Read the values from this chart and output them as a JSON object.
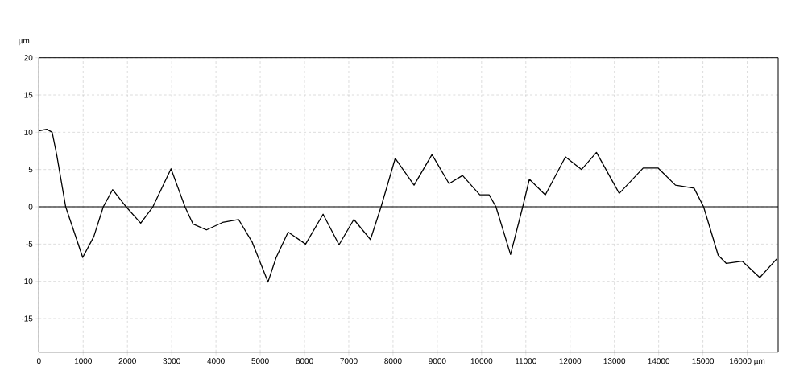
{
  "chart_data": {
    "type": "line",
    "ylabel": "µm",
    "color": "#000000",
    "line_style": "solid",
    "grid": true,
    "x": [
      0,
      180,
      300,
      405,
      605,
      990,
      1240,
      1455,
      1665,
      1970,
      2300,
      2575,
      2985,
      3300,
      3480,
      3785,
      4150,
      4510,
      4815,
      5175,
      5360,
      5630,
      6025,
      6420,
      6780,
      7115,
      7490,
      7730,
      8050,
      8475,
      8880,
      9265,
      9570,
      9960,
      10170,
      10325,
      10655,
      10930,
      11080,
      11440,
      11895,
      12260,
      12595,
      13110,
      13650,
      13985,
      14380,
      14800,
      15015,
      15345,
      15530,
      15890,
      16285,
      16667
    ],
    "values": [
      10.2,
      10.4,
      10,
      6.9,
      0,
      -6.8,
      -4,
      0,
      2.3,
      0,
      -2.2,
      0,
      5.1,
      0,
      -2.3,
      -3.1,
      -2.1,
      -1.7,
      -4.7,
      -10.1,
      -6.8,
      -3.4,
      -5,
      -1,
      -5.1,
      -1.7,
      -4.4,
      0,
      6.5,
      2.9,
      7,
      3.1,
      4.2,
      1.6,
      1.6,
      0,
      -6.4,
      0,
      3.7,
      1.6,
      6.7,
      5,
      7.3,
      1.8,
      5.2,
      5.2,
      2.9,
      2.5,
      0,
      -6.5,
      -7.6,
      -7.3,
      -9.5,
      -7
    ],
    "xlim": [
      0,
      16700
    ],
    "ylim": [
      -19.5,
      20
    ],
    "xticks": [
      0,
      1000,
      2000,
      3000,
      4000,
      5000,
      6000,
      7000,
      8000,
      9000,
      10000,
      11000,
      12000,
      13000,
      14000,
      15000,
      {
        "value": 16000,
        "label": "16000 µm"
      }
    ],
    "yticks": [
      20,
      15,
      10,
      5,
      0,
      -5,
      -10,
      -15
    ],
    "ref_lines": [
      {
        "axis": "y",
        "value": 0
      }
    ]
  }
}
